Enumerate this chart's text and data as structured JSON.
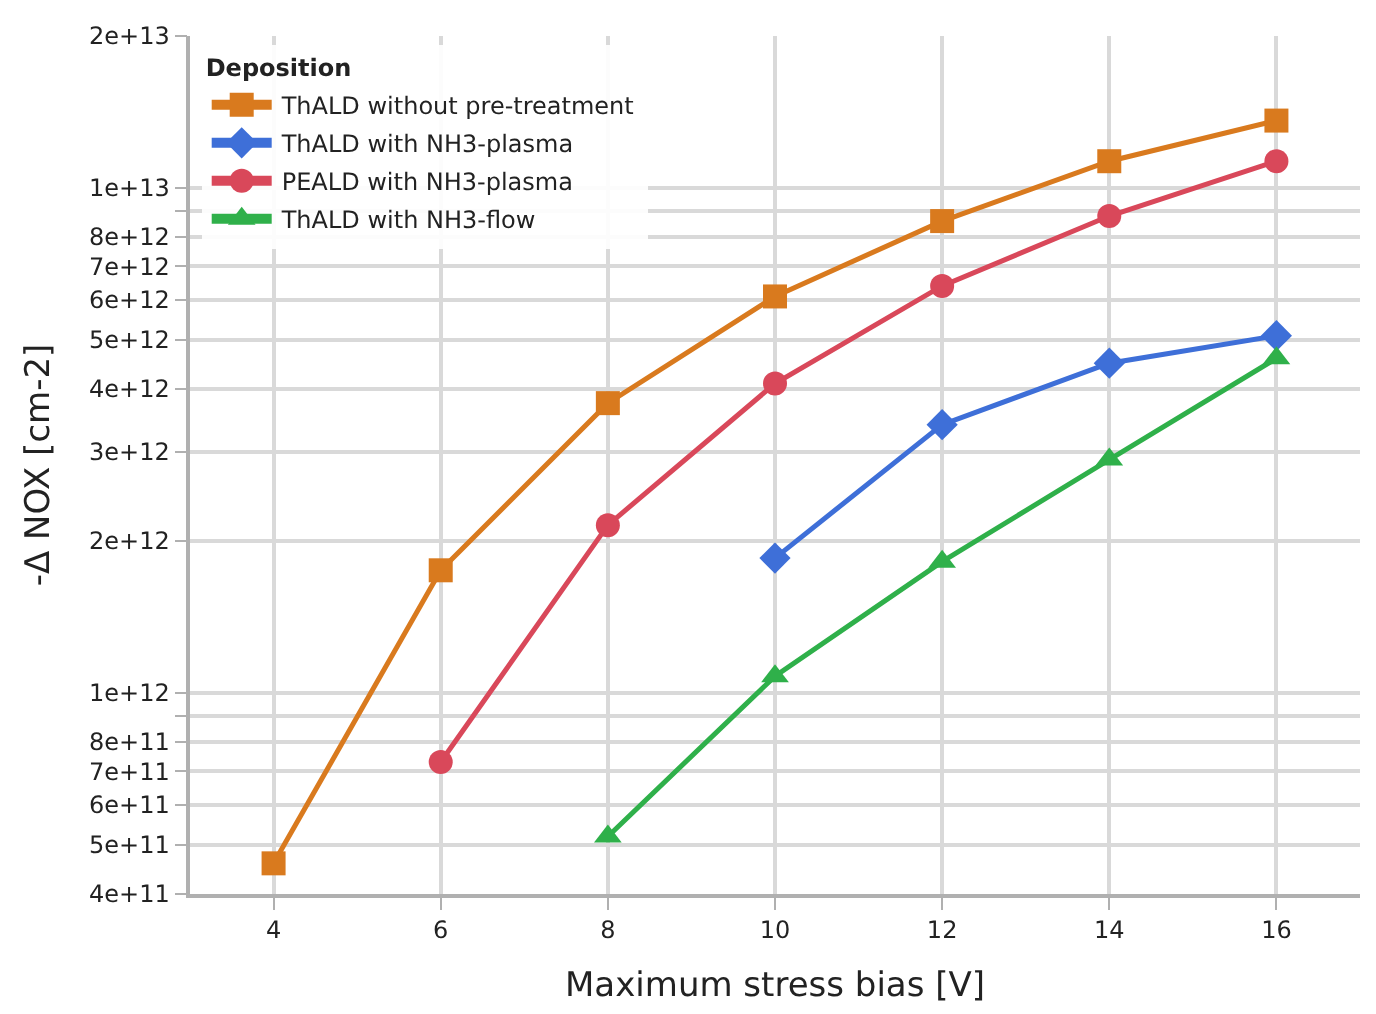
{
  "chart_data": {
    "type": "line",
    "xlabel": "Maximum stress bias [V]",
    "ylabel": "-Δ NOX [cm-2]",
    "legend_title": "Deposition",
    "legend": "top left",
    "grid": true,
    "log": "y",
    "line_style": "solid",
    "xlim": [
      3,
      17
    ],
    "xticks": [
      4,
      6,
      8,
      10,
      12,
      14,
      16
    ],
    "ylim": [
      400000000000.0,
      20000000000000.0
    ],
    "yticks": [
      {
        "value": 400000000000.0,
        "label": "4e+11"
      },
      {
        "value": 500000000000.0,
        "label": "5e+11"
      },
      {
        "value": 600000000000.0,
        "label": "6e+11"
      },
      {
        "value": 700000000000.0,
        "label": "7e+11"
      },
      {
        "value": 800000000000.0,
        "label": "8e+11"
      },
      {
        "value": 900000000000.0,
        "label": null
      },
      {
        "value": 1000000000000.0,
        "label": "1e+12"
      },
      {
        "value": 2000000000000.0,
        "label": "2e+12"
      },
      {
        "value": 3000000000000.0,
        "label": "3e+12"
      },
      {
        "value": 4000000000000.0,
        "label": "4e+12"
      },
      {
        "value": 5000000000000.0,
        "label": "5e+12"
      },
      {
        "value": 6000000000000.0,
        "label": "6e+12"
      },
      {
        "value": 7000000000000.0,
        "label": "7e+12"
      },
      {
        "value": 8000000000000.0,
        "label": "8e+12"
      },
      {
        "value": 9000000000000.0,
        "label": null
      },
      {
        "value": 10000000000000.0,
        "label": "1e+13"
      },
      {
        "value": 20000000000000.0,
        "label": "2e+13"
      }
    ],
    "series": [
      {
        "name": "ThALD without pre-treatment",
        "color": "#d97a1e",
        "marker": "square",
        "x": [
          4,
          6,
          8,
          10,
          12,
          14,
          16
        ],
        "values": [
          460000000000.0,
          1750000000000.0,
          3750000000000.0,
          6100000000000.0,
          8600000000000.0,
          11300000000000.0,
          13600000000000.0
        ]
      },
      {
        "name": "ThALD with NH3-plasma",
        "color": "#3e6fd8",
        "marker": "diamond",
        "x": [
          10,
          12,
          14,
          16
        ],
        "values": [
          1850000000000.0,
          3400000000000.0,
          4500000000000.0,
          5100000000000.0
        ]
      },
      {
        "name": "PEALD with NH3-plasma",
        "color": "#d9485a",
        "marker": "circle",
        "x": [
          6,
          8,
          10,
          12,
          14,
          16
        ],
        "values": [
          730000000000.0,
          2150000000000.0,
          4100000000000.0,
          6400000000000.0,
          8800000000000.0,
          11300000000000.0
        ]
      },
      {
        "name": "ThALD with NH3-flow",
        "color": "#2fb04a",
        "marker": "triangle",
        "x": [
          8,
          10,
          12,
          14,
          16
        ],
        "values": [
          520000000000.0,
          1080000000000.0,
          1820000000000.0,
          2900000000000.0,
          4600000000000.0
        ]
      }
    ]
  }
}
